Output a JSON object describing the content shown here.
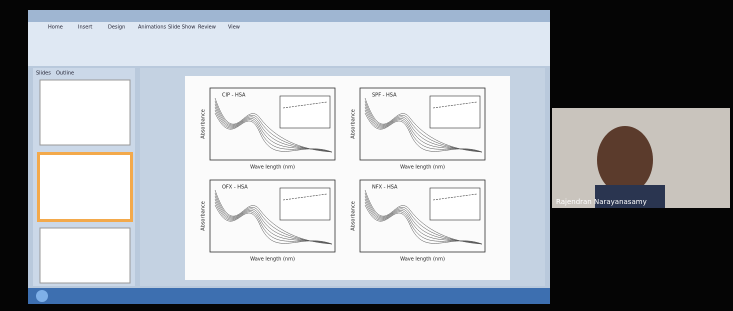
{
  "ribbon_tabs": [
    "Home",
    "Insert",
    "Design",
    "Animations",
    "Slide Show",
    "Review",
    "View"
  ],
  "panel_tabs": [
    "Slides",
    "Outline"
  ],
  "plots": [
    {
      "title": "CIP - HSA",
      "x_label": "Wave length (nm)",
      "y_label": "Absorbance"
    },
    {
      "title": "SPF - HSA",
      "x_label": "Wave length (nm)",
      "y_label": "Absorbance"
    },
    {
      "title": "OFX - HSA",
      "x_label": "Wave length (nm)",
      "y_label": "Absorbance"
    },
    {
      "title": "NFX - HSA",
      "x_label": "Wave length (nm)",
      "y_label": "Absorbance"
    }
  ],
  "participant": {
    "name": "Rajendran Narayanasamy"
  }
}
